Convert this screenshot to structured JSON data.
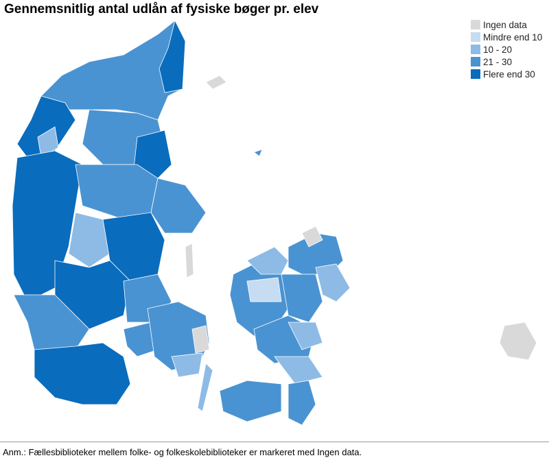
{
  "title": "Gennemsnitlig antal udlån af fysiske bøger pr. elev",
  "legend": [
    {
      "label": "Ingen data",
      "color": "#d9d9d9"
    },
    {
      "label": "Mindre end 10",
      "color": "#c6dcf2"
    },
    {
      "label": "10 - 20",
      "color": "#8dbbe6"
    },
    {
      "label": "21 - 30",
      "color": "#4a93d2"
    },
    {
      "label": "Flere end 30",
      "color": "#0a6cbd"
    }
  ],
  "note": "Anm.: Fællesbiblioteker mellem folke- og folkeskolebiblioteker er markeret med Ingen data."
}
